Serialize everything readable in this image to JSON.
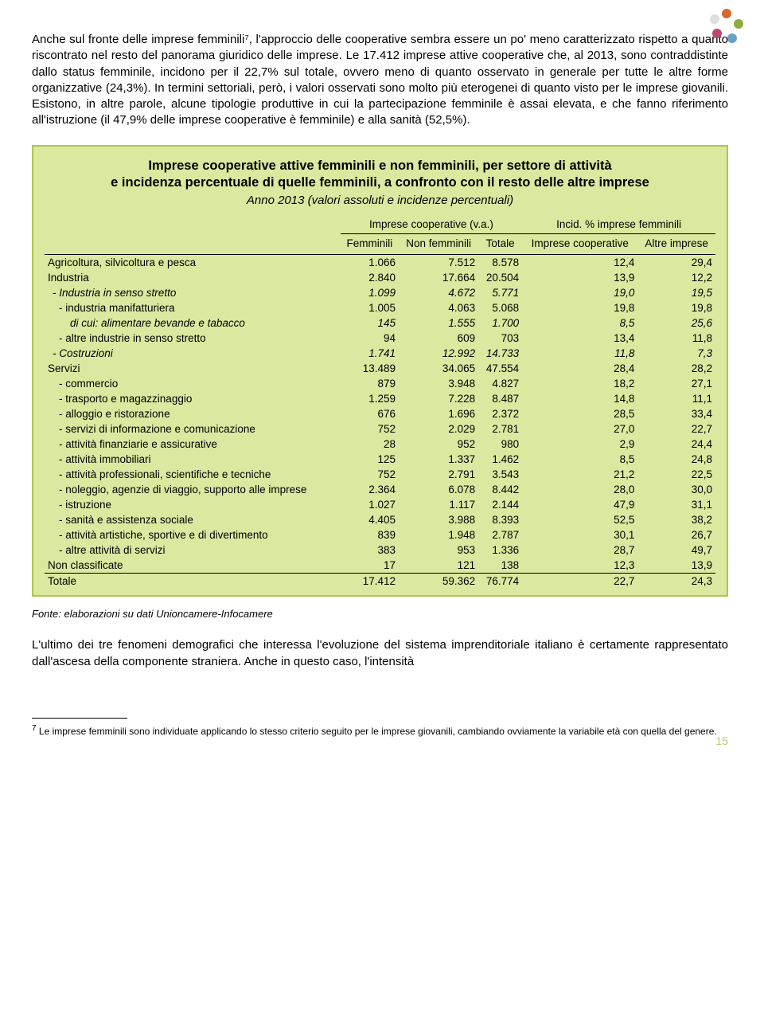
{
  "paragraph1": "Anche sul fronte delle imprese femminili⁷, l'approccio delle cooperative sembra essere un po' meno caratterizzato rispetto a quanto riscontrato nel resto del panorama giuridico delle imprese. Le 17.412 imprese attive cooperative che, al 2013, sono contraddistinte dallo status femminile, incidono per il 22,7% sul totale, ovvero meno di quanto osservato in generale per tutte le altre forme organizzative (24,3%). In termini settoriali, però, i valori osservati sono molto più eterogenei di quanto visto per le imprese giovanili. Esistono, in altre parole, alcune tipologie produttive in cui la partecipazione femminile è assai elevata, e che fanno riferimento all'istruzione (il 47,9% delle imprese cooperative è femminile) e alla sanità (52,5%).",
  "box": {
    "title_line1": "Imprese cooperative attive femminili e non femminili, per settore di attività",
    "title_line2": "e incidenza percentuale di quelle femminili, a confronto con il resto delle altre imprese",
    "subtitle": "Anno 2013 (valori assoluti e incidenze percentuali)",
    "header_group1": "Imprese cooperative (v.a.)",
    "header_group2": "Incid. % imprese femminili",
    "col1": "Femminili",
    "col2": "Non femminili",
    "col3": "Totale",
    "col4": "Imprese cooperative",
    "col5": "Altre imprese",
    "rows": [
      {
        "label": "Agricoltura, silvicoltura e pesca",
        "style": "plain",
        "c1": "1.066",
        "c2": "7.512",
        "c3": "8.578",
        "c4": "12,4",
        "c5": "29,4"
      },
      {
        "label": "Industria",
        "style": "plain",
        "c1": "2.840",
        "c2": "17.664",
        "c3": "20.504",
        "c4": "13,9",
        "c5": "12,2"
      },
      {
        "label": "- Industria in senso stretto",
        "style": "ind1",
        "c1": "1.099",
        "c2": "4.672",
        "c3": "5.771",
        "c4": "19,0",
        "c5": "19,5"
      },
      {
        "label": "- industria manifatturiera",
        "style": "ind2",
        "c1": "1.005",
        "c2": "4.063",
        "c3": "5.068",
        "c4": "19,8",
        "c5": "19,8"
      },
      {
        "label": "di cui: alimentare bevande e tabacco",
        "style": "ind3",
        "c1": "145",
        "c2": "1.555",
        "c3": "1.700",
        "c4": "8,5",
        "c5": "25,6"
      },
      {
        "label": "- altre industrie in senso stretto",
        "style": "ind2",
        "c1": "94",
        "c2": "609",
        "c3": "703",
        "c4": "13,4",
        "c5": "11,8"
      },
      {
        "label": "- Costruzioni",
        "style": "ind1",
        "c1": "1.741",
        "c2": "12.992",
        "c3": "14.733",
        "c4": "11,8",
        "c5": "7,3"
      },
      {
        "label": "Servizi",
        "style": "plain",
        "c1": "13.489",
        "c2": "34.065",
        "c3": "47.554",
        "c4": "28,4",
        "c5": "28,2"
      },
      {
        "label": "- commercio",
        "style": "ind2",
        "c1": "879",
        "c2": "3.948",
        "c3": "4.827",
        "c4": "18,2",
        "c5": "27,1"
      },
      {
        "label": "- trasporto e magazzinaggio",
        "style": "ind2",
        "c1": "1.259",
        "c2": "7.228",
        "c3": "8.487",
        "c4": "14,8",
        "c5": "11,1"
      },
      {
        "label": "- alloggio e ristorazione",
        "style": "ind2",
        "c1": "676",
        "c2": "1.696",
        "c3": "2.372",
        "c4": "28,5",
        "c5": "33,4"
      },
      {
        "label": "- servizi di informazione e comunicazione",
        "style": "ind2",
        "c1": "752",
        "c2": "2.029",
        "c3": "2.781",
        "c4": "27,0",
        "c5": "22,7"
      },
      {
        "label": "- attività finanziarie e assicurative",
        "style": "ind2",
        "c1": "28",
        "c2": "952",
        "c3": "980",
        "c4": "2,9",
        "c5": "24,4"
      },
      {
        "label": "- attività immobiliari",
        "style": "ind2",
        "c1": "125",
        "c2": "1.337",
        "c3": "1.462",
        "c4": "8,5",
        "c5": "24,8"
      },
      {
        "label": "- attività professionali, scientifiche e tecniche",
        "style": "ind2",
        "c1": "752",
        "c2": "2.791",
        "c3": "3.543",
        "c4": "21,2",
        "c5": "22,5"
      },
      {
        "label": "- noleggio, agenzie di viaggio, supporto alle imprese",
        "style": "ind2",
        "c1": "2.364",
        "c2": "6.078",
        "c3": "8.442",
        "c4": "28,0",
        "c5": "30,0"
      },
      {
        "label": "- istruzione",
        "style": "ind2",
        "c1": "1.027",
        "c2": "1.117",
        "c3": "2.144",
        "c4": "47,9",
        "c5": "31,1"
      },
      {
        "label": "- sanità e assistenza sociale",
        "style": "ind2",
        "c1": "4.405",
        "c2": "3.988",
        "c3": "8.393",
        "c4": "52,5",
        "c5": "38,2"
      },
      {
        "label": "- attività artistiche, sportive e di divertimento",
        "style": "ind2",
        "c1": "839",
        "c2": "1.948",
        "c3": "2.787",
        "c4": "30,1",
        "c5": "26,7"
      },
      {
        "label": "- altre attività di servizi",
        "style": "ind2",
        "c1": "383",
        "c2": "953",
        "c3": "1.336",
        "c4": "28,7",
        "c5": "49,7"
      },
      {
        "label": "Non classificate",
        "style": "plain",
        "c1": "17",
        "c2": "121",
        "c3": "138",
        "c4": "12,3",
        "c5": "13,9"
      },
      {
        "label": "Totale",
        "style": "total",
        "c1": "17.412",
        "c2": "59.362",
        "c3": "76.774",
        "c4": "22,7",
        "c5": "24,3"
      }
    ]
  },
  "fonte": "Fonte: elaborazioni su dati Unioncamere-Infocamere",
  "paragraph2": "L'ultimo dei tre fenomeni demografici che interessa l'evoluzione del sistema imprenditoriale italiano è certamente rappresentato dall'ascesa della componente straniera. Anche in questo caso, l'intensità",
  "footnote": "Le imprese femminili sono individuate applicando lo stesso criterio seguito per le imprese giovanili, cambiando ovviamente la variabile età con quella del genere.",
  "footnote_num": "7",
  "page_number": "15",
  "logo_colors": [
    "#d8682b",
    "#8aad3e",
    "#6aa0c7",
    "#b94a6e"
  ]
}
